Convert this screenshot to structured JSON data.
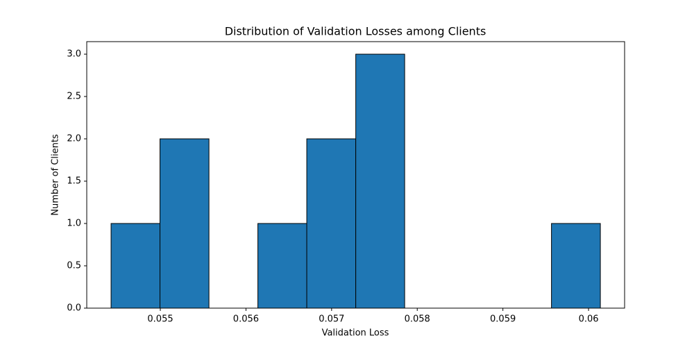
{
  "chart_data": {
    "type": "histogram",
    "title": "Distribution of Validation Losses among Clients",
    "x_label": "Validation Loss",
    "y_label": "Number of Clients",
    "bins": [
      0.054425,
      0.054996,
      0.055568,
      0.056139,
      0.05671,
      0.057282,
      0.057853,
      0.058424,
      0.058995,
      0.059567,
      0.060138
    ],
    "values": [
      1,
      2,
      0,
      1,
      2,
      3,
      0,
      0,
      0,
      1
    ],
    "color": "#1f77b4",
    "edgecolor": "#000000",
    "xlim": [
      0.054141,
      0.060421
    ],
    "xticks": [
      0.055,
      0.056,
      0.057,
      0.058,
      0.059,
      0.06
    ],
    "ylim": [
      0,
      3.148
    ],
    "yticks": [
      {
        "value": 0,
        "label": "0.0"
      },
      0.5,
      {
        "value": 1,
        "label": "1.0"
      },
      1.5,
      {
        "value": 2,
        "label": "2.0"
      },
      2.5,
      {
        "value": 3,
        "label": "3.0"
      }
    ]
  }
}
